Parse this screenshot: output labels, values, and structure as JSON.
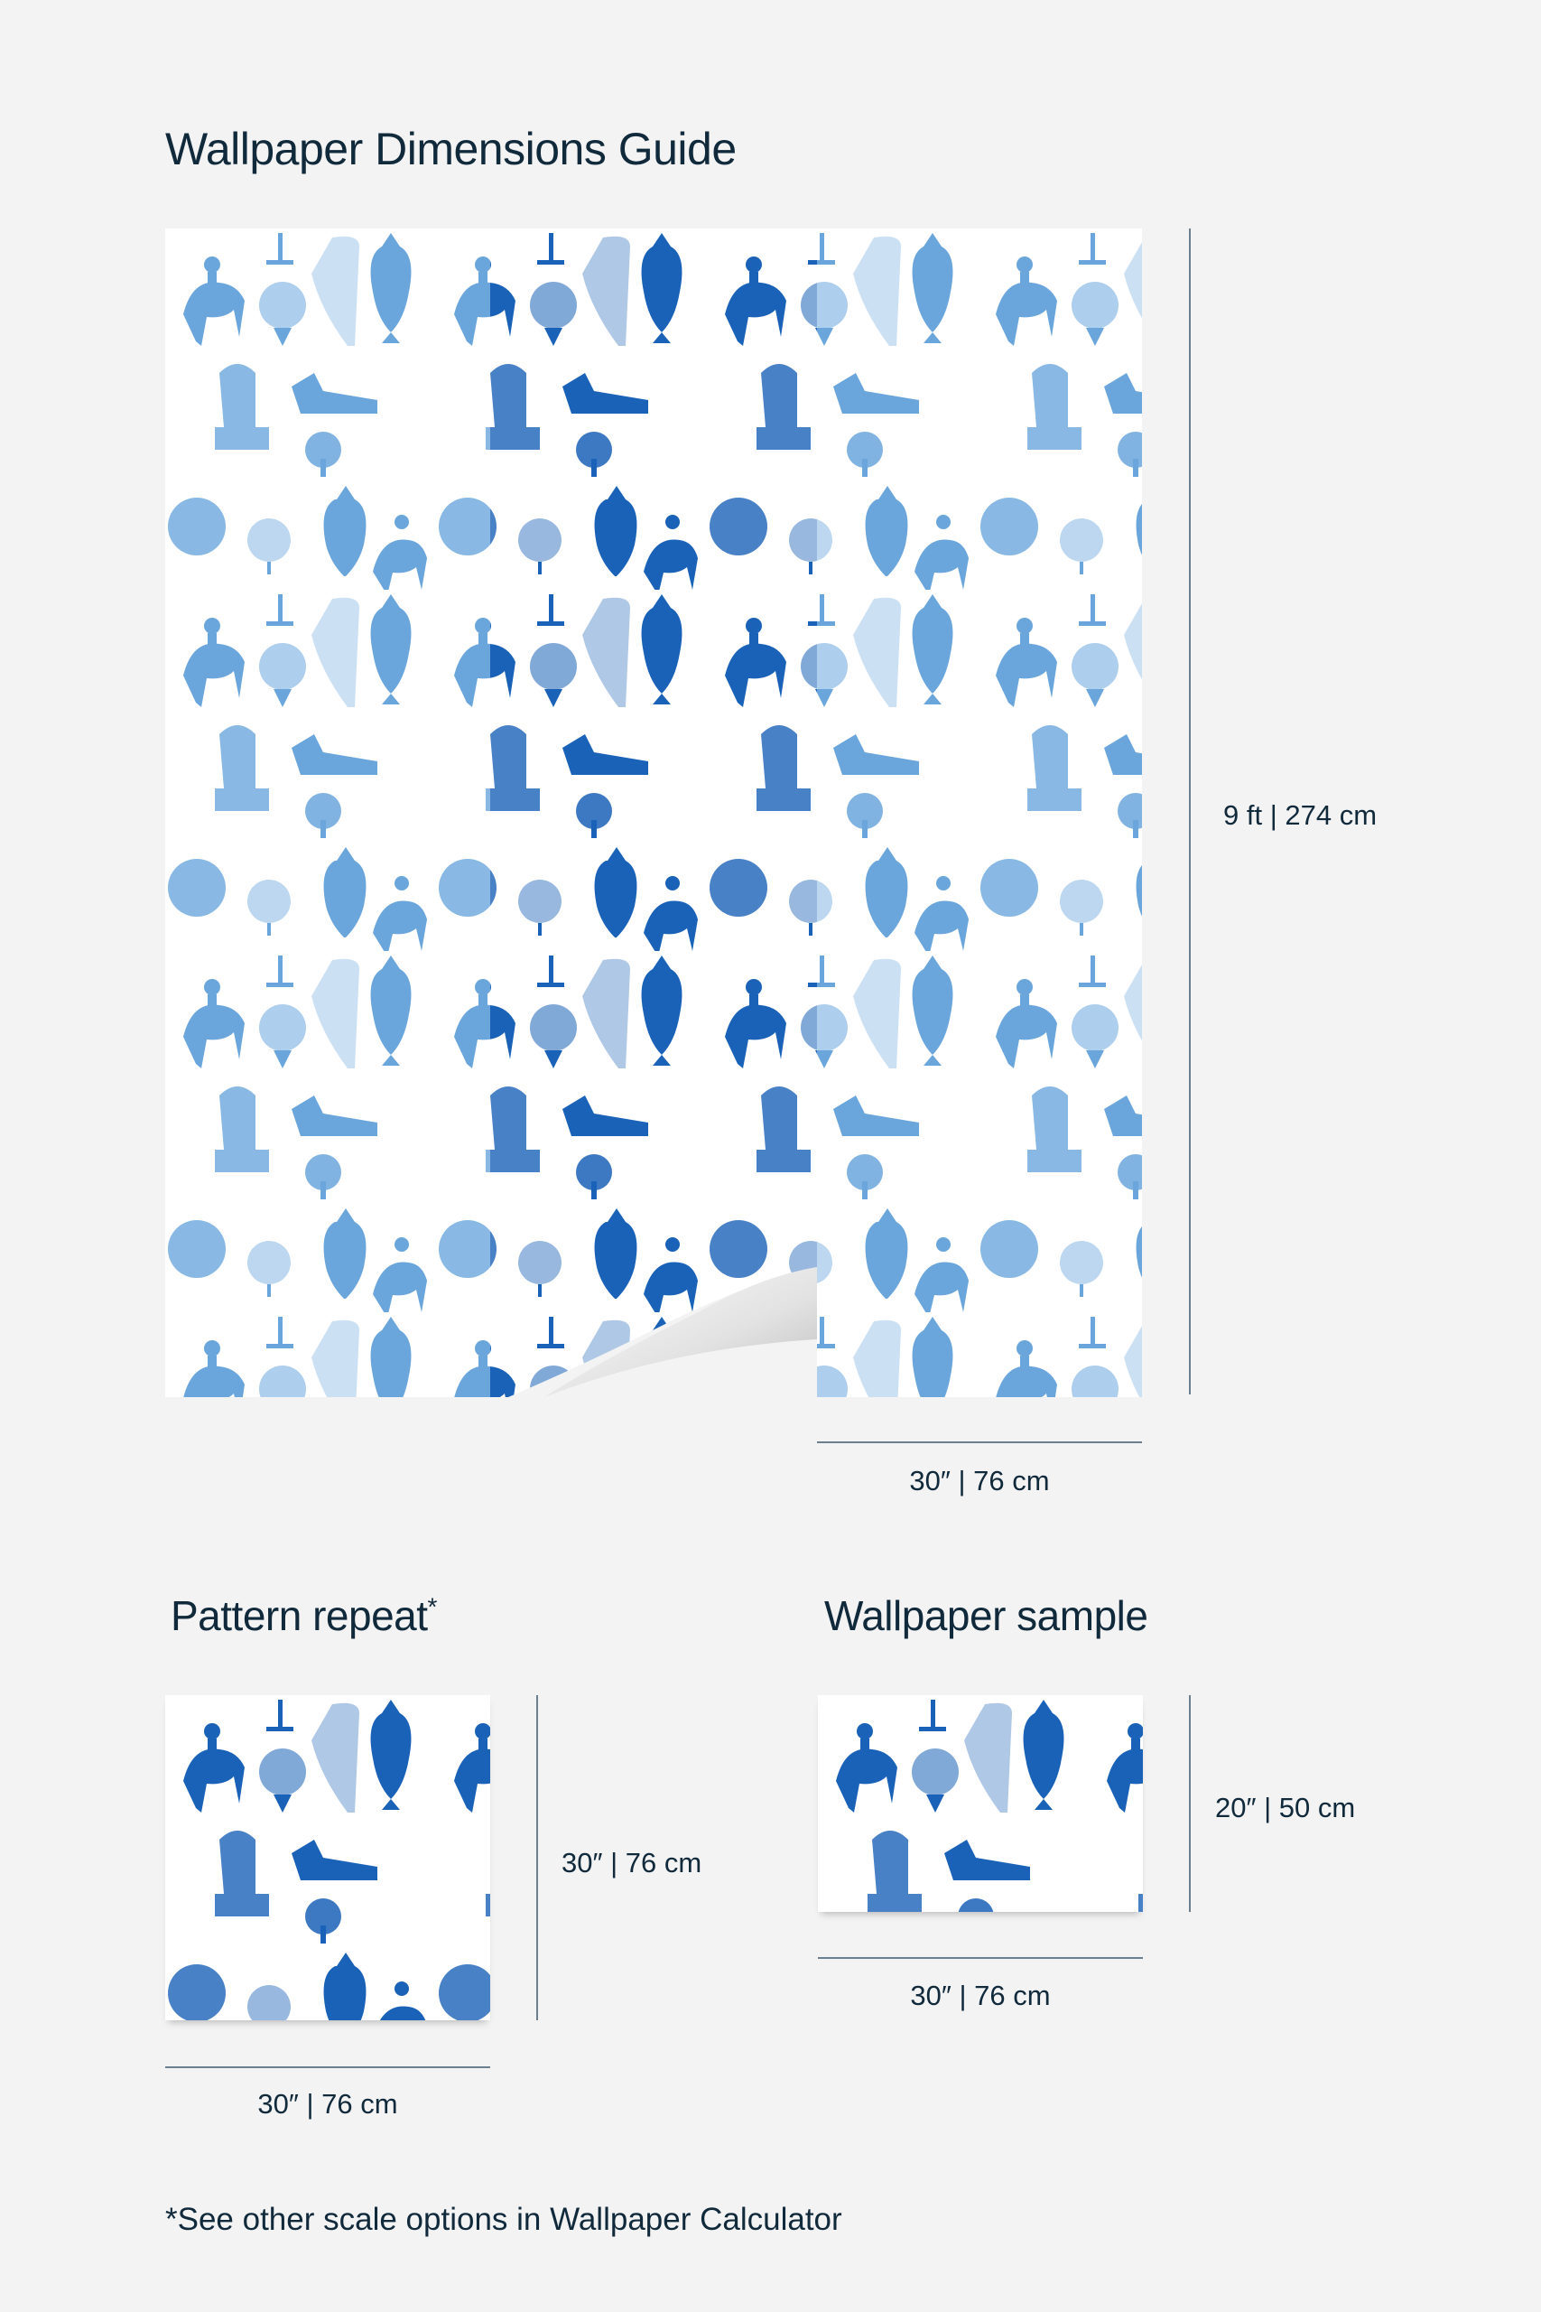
{
  "title": "Wallpaper Dimensions Guide",
  "main_panel": {
    "height_label": "9 ft | 274 cm",
    "width_label": "30″ | 76 cm"
  },
  "pattern_repeat": {
    "heading": "Pattern repeat",
    "asterisk": "*",
    "height_label": "30″ | 76 cm",
    "width_label": "30″ | 76 cm"
  },
  "sample": {
    "heading": "Wallpaper sample",
    "height_label": "20″ | 50 cm",
    "width_label": "30″ | 76 cm"
  },
  "footnote": "*See other scale options in Wallpaper Calculator",
  "colors": {
    "text": "#10293b",
    "pattern_dark": "#1a62b8",
    "pattern_light": "#6aa6dc",
    "background": "#f3f3f3"
  }
}
